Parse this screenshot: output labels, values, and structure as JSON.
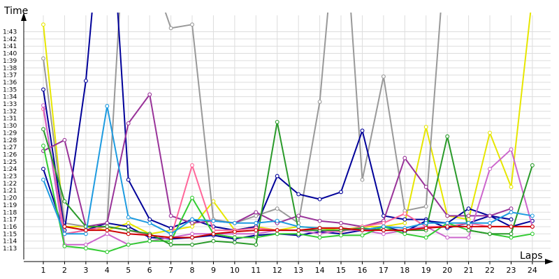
{
  "chart_data": {
    "type": "line",
    "ylabel": "Time",
    "xlabel": "Laps",
    "x": [
      1,
      2,
      3,
      4,
      5,
      6,
      7,
      8,
      9,
      10,
      11,
      12,
      13,
      14,
      15,
      16,
      17,
      18,
      19,
      20,
      21,
      22,
      23,
      24
    ],
    "x_tick_labels": [
      "1",
      "2",
      "3",
      "4",
      "5",
      "6",
      "7",
      "8",
      "9",
      "10",
      "11",
      "12",
      "13",
      "14",
      "15",
      "16",
      "17",
      "18",
      "19",
      "20",
      "21",
      "22",
      "23",
      "24"
    ],
    "y_unit": "seconds",
    "y_tick_labels": [
      "1:13",
      "1:14",
      "1:15",
      "1:16",
      "1:17",
      "1:18",
      "1:19",
      "1:20",
      "1:21",
      "1:22",
      "1:23",
      "1:24",
      "1:25",
      "1:26",
      "1:27",
      "1:28",
      "1:29",
      "1:30",
      "1:31",
      "1:32",
      "1:33",
      "1:34",
      "1:35",
      "1:36",
      "1:37",
      "1:38",
      "1:39",
      "1:40",
      "1:41",
      "1:42",
      "1:43"
    ],
    "y_tick_values": [
      73,
      74,
      75,
      76,
      77,
      78,
      79,
      80,
      81,
      82,
      83,
      84,
      85,
      86,
      87,
      88,
      89,
      90,
      91,
      92,
      93,
      94,
      95,
      96,
      97,
      98,
      99,
      100,
      101,
      102,
      103
    ],
    "ylim": [
      72.0,
      104.6
    ],
    "xlim": [
      0.55,
      24.35
    ],
    "grid": true,
    "series": [
      {
        "color": "#e6e600",
        "values": [
          104.0,
          76.0,
          76.0,
          75.5,
          76.5,
          75.0,
          75.5,
          76.0,
          79.5,
          75.5,
          76.0,
          75.5,
          76.0,
          75.8,
          75.5,
          76.0,
          76.0,
          76.5,
          89.8,
          77.5,
          77.0,
          89.0,
          81.5,
          108.0
        ]
      },
      {
        "color": "#999999",
        "values": [
          99.3,
          76.5,
          76.0,
          76.5,
          127.0,
          112.0,
          103.5,
          104.0,
          77.0,
          76.5,
          77.5,
          78.5,
          76.5,
          93.3,
          126.0,
          82.5,
          96.8,
          78.2,
          78.8,
          118.0,
          null,
          null,
          null,
          null
        ]
      },
      {
        "color": "#000099",
        "values": [
          95.0,
          75.5,
          96.2,
          129.0,
          82.5,
          77.0,
          75.8,
          77.0,
          76.0,
          75.5,
          76.0,
          83.0,
          80.5,
          79.8,
          80.8,
          89.3,
          77.5,
          77.0,
          77.0,
          75.8,
          76.5,
          77.5,
          77.0,
          null
        ]
      },
      {
        "color": "#000099",
        "values": [
          84.0,
          75.0,
          75.5,
          76.5,
          76.0,
          74.5,
          74.3,
          74.5,
          74.8,
          74.3,
          74.8,
          75.0,
          74.8,
          75.3,
          75.0,
          75.5,
          76.0,
          75.3,
          76.8,
          76.5,
          78.5,
          77.5,
          76.0,
          76.8
        ]
      },
      {
        "color": "#993399",
        "values": [
          86.5,
          88.0,
          76.0,
          76.5,
          90.3,
          94.3,
          77.5,
          76.5,
          76.8,
          76.5,
          78.0,
          76.5,
          77.5,
          76.8,
          76.5,
          76.0,
          76.8,
          85.5,
          81.5,
          77.5,
          77.5,
          77.5,
          78.5,
          null
        ]
      },
      {
        "color": "#ff6699",
        "values": [
          92.3,
          75.0,
          75.5,
          76.0,
          75.5,
          74.8,
          74.5,
          84.5,
          75.5,
          75.5,
          75.8,
          75.5,
          75.5,
          75.5,
          75.3,
          76.0,
          76.5,
          77.8,
          76.0,
          76.0,
          76.5,
          76.0,
          76.0,
          76.0
        ]
      },
      {
        "color": "#cc66cc",
        "values": [
          92.8,
          73.5,
          73.5,
          75.0,
          73.5,
          74.0,
          74.5,
          75.0,
          75.0,
          75.0,
          75.0,
          75.5,
          75.5,
          75.0,
          75.5,
          75.5,
          75.0,
          75.5,
          76.0,
          74.5,
          74.5,
          84.0,
          86.7,
          76.0
        ]
      },
      {
        "color": "#33cc33",
        "values": [
          87.2,
          73.3,
          73.0,
          72.5,
          73.5,
          74.0,
          74.0,
          80.0,
          75.0,
          74.5,
          74.5,
          75.0,
          75.0,
          74.5,
          74.8,
          74.8,
          76.0,
          75.0,
          74.5,
          76.5,
          75.5,
          75.0,
          74.5,
          75.0
        ]
      },
      {
        "color": "#2a9a2a",
        "values": [
          89.5,
          79.5,
          76.0,
          76.0,
          75.5,
          75.0,
          73.5,
          73.5,
          74.0,
          73.8,
          73.5,
          90.5,
          75.5,
          75.5,
          75.5,
          75.8,
          75.5,
          75.5,
          75.5,
          88.5,
          75.5,
          75.0,
          75.0,
          84.5
        ]
      },
      {
        "color": "#1e9be0",
        "values": [
          82.5,
          75.0,
          75.0,
          92.7,
          77.3,
          76.5,
          75.0,
          77.0,
          76.8,
          76.5,
          76.5,
          76.8,
          76.0,
          75.8,
          75.8,
          75.5,
          76.0,
          75.8,
          76.5,
          76.5,
          76.5,
          76.5,
          78.0,
          77.5
        ]
      },
      {
        "color": "#cc0000",
        "values": [
          null,
          76.0,
          75.5,
          75.5,
          75.0,
          74.8,
          74.5,
          74.5,
          75.0,
          75.3,
          75.5,
          75.5,
          75.5,
          75.8,
          75.8,
          75.5,
          75.5,
          75.5,
          75.8,
          76.0,
          76.0,
          76.0,
          76.0,
          76.0
        ]
      }
    ]
  }
}
